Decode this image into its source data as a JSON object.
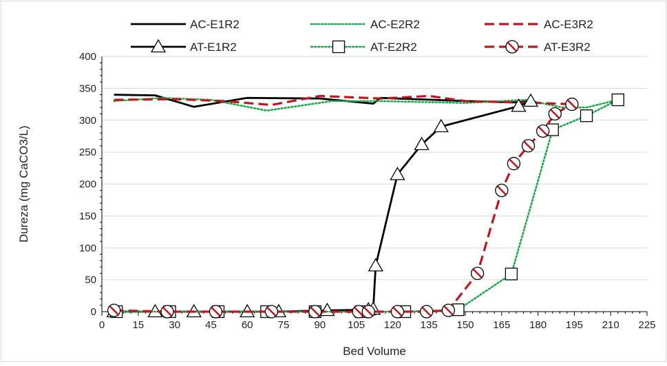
{
  "chart_data": {
    "type": "line",
    "title": "",
    "xlabel": "Bed Volume",
    "ylabel": "Dureza (mg CaCO3/L)",
    "xlim": [
      0,
      225
    ],
    "ylim": [
      0,
      400
    ],
    "xticks": [
      0,
      15,
      30,
      45,
      60,
      75,
      90,
      105,
      120,
      135,
      150,
      165,
      180,
      195,
      210,
      225
    ],
    "yticks": [
      0,
      50,
      100,
      150,
      200,
      250,
      300,
      350,
      400
    ],
    "grid": "horizontal",
    "legend_position": "top",
    "series": [
      {
        "name": "AC-E1R2",
        "color": "#000000",
        "dash": "solid",
        "marker": "none",
        "x": [
          5,
          22,
          38,
          60,
          90,
          112,
          115,
          150,
          170,
          178
        ],
        "y": [
          340,
          339,
          321,
          335,
          334,
          326,
          335,
          330,
          328,
          330
        ]
      },
      {
        "name": "AC-E2R2",
        "color": "#1aab4a",
        "dash": "dotted",
        "marker": "none",
        "x": [
          5,
          25,
          45,
          68,
          95,
          115,
          150,
          175,
          190,
          200,
          213
        ],
        "y": [
          330,
          335,
          332,
          315,
          330,
          330,
          327,
          332,
          320,
          320,
          332
        ]
      },
      {
        "name": "AC-E3R2",
        "color": "#c0171c",
        "dash": "dashed",
        "marker": "none",
        "x": [
          5,
          30,
          50,
          70,
          90,
          115,
          135,
          150,
          180,
          195
        ],
        "y": [
          332,
          333,
          330,
          324,
          338,
          334,
          338,
          330,
          327,
          325
        ]
      },
      {
        "name": "AT-E1R2",
        "color": "#000000",
        "dash": "solid",
        "marker": "triangle",
        "x": [
          5,
          22,
          38,
          60,
          73,
          93,
          110,
          112,
          113,
          122,
          132,
          140,
          172,
          177
        ],
        "y": [
          0,
          0,
          0,
          0,
          0,
          2,
          3,
          4,
          72,
          215,
          262,
          290,
          322,
          330
        ]
      },
      {
        "name": "AT-E2R2",
        "color": "#1aab4a",
        "dash": "dotted",
        "marker": "square",
        "x": [
          6,
          28,
          48,
          68,
          88,
          107,
          125,
          147,
          169,
          186,
          200,
          213
        ],
        "y": [
          0,
          0,
          0,
          0,
          0,
          0,
          0,
          3,
          59,
          285,
          307,
          332
        ]
      },
      {
        "name": "AT-E3R2",
        "color": "#c0171c",
        "dash": "dashed",
        "marker": "circle",
        "x": [
          5,
          27,
          47,
          70,
          88,
          106,
          110,
          122,
          134,
          143,
          155,
          165,
          170,
          176,
          182,
          187,
          194
        ],
        "y": [
          2,
          0,
          0,
          0,
          0,
          0,
          0,
          0,
          0,
          2,
          60,
          190,
          232,
          260,
          283,
          310,
          325
        ]
      }
    ]
  }
}
